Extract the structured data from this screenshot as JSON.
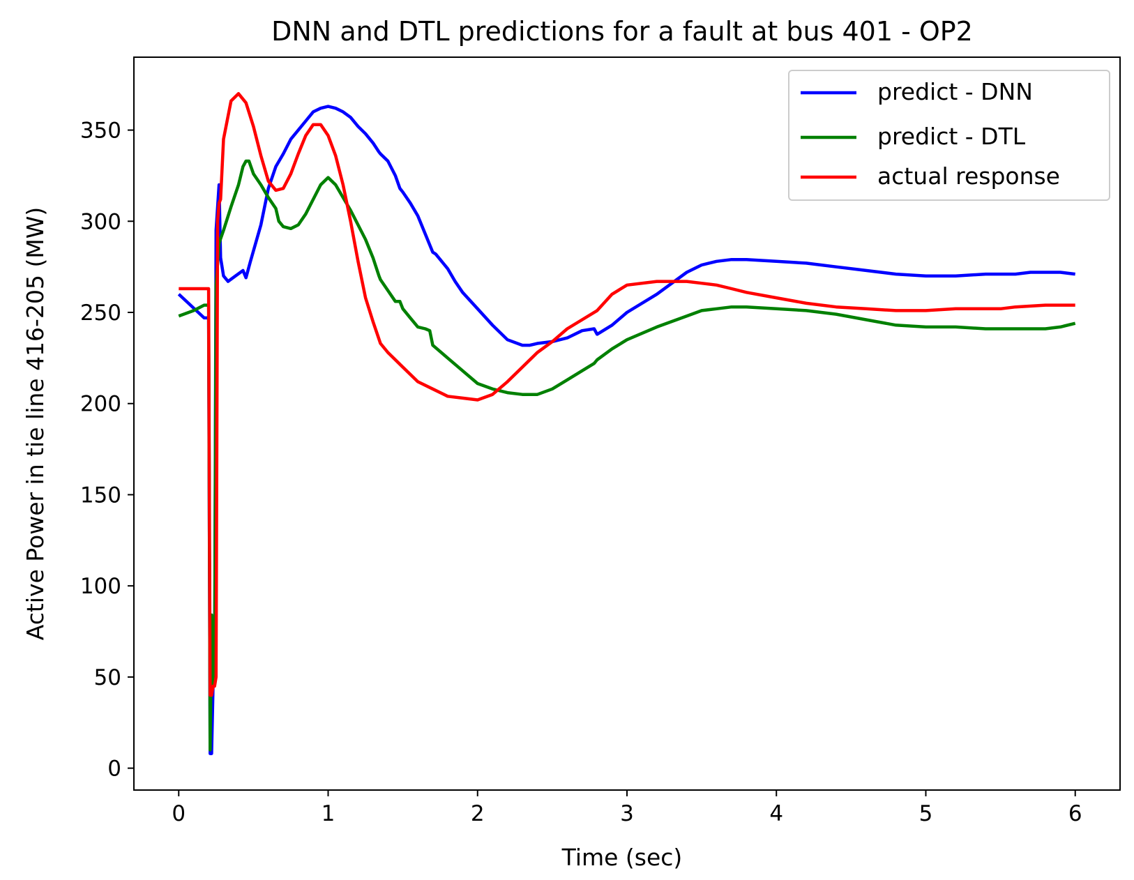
{
  "chart_data": {
    "type": "line",
    "title": "DNN and DTL predictions for a fault at bus 401 - OP2",
    "xlabel": "Time (sec)",
    "ylabel": "Active Power in tie line 416-205 (MW)",
    "xlim": [
      -0.3,
      6.3
    ],
    "ylim": [
      -12,
      390
    ],
    "xticks": [
      "0",
      "1",
      "2",
      "3",
      "4",
      "5",
      "6"
    ],
    "yticks": [
      "0",
      "50",
      "100",
      "150",
      "200",
      "250",
      "300",
      "350"
    ],
    "grid": false,
    "legend_position": "top-right",
    "series": [
      {
        "name": "predict - DNN",
        "color": "#0000ff",
        "x": [
          0,
          0.17,
          0.2,
          0.21,
          0.22,
          0.23,
          0.24,
          0.25,
          0.27,
          0.28,
          0.3,
          0.33,
          0.38,
          0.43,
          0.45,
          0.48,
          0.55,
          0.6,
          0.65,
          0.7,
          0.75,
          0.8,
          0.85,
          0.9,
          0.95,
          1.0,
          1.05,
          1.1,
          1.15,
          1.2,
          1.25,
          1.3,
          1.34,
          1.35,
          1.4,
          1.45,
          1.48,
          1.5,
          1.55,
          1.6,
          1.65,
          1.7,
          1.72,
          1.8,
          1.85,
          1.9,
          2.0,
          2.1,
          2.2,
          2.3,
          2.35,
          2.4,
          2.5,
          2.6,
          2.7,
          2.78,
          2.8,
          2.9,
          3.0,
          3.2,
          3.4,
          3.5,
          3.6,
          3.7,
          3.8,
          4.0,
          4.2,
          4.4,
          4.6,
          4.8,
          5.0,
          5.2,
          5.4,
          5.5,
          5.6,
          5.7,
          5.8,
          5.9,
          6.0
        ],
        "y": [
          260,
          247,
          247,
          8,
          8,
          45,
          47,
          295,
          320,
          280,
          270,
          267,
          270,
          273,
          269,
          278,
          298,
          318,
          330,
          337,
          345,
          350,
          355,
          360,
          362,
          363,
          362,
          360,
          357,
          352,
          348,
          343,
          338,
          337,
          333,
          325,
          318,
          316,
          310,
          303,
          293,
          283,
          282,
          274,
          267,
          261,
          252,
          243,
          235,
          232,
          232,
          233,
          234,
          236,
          240,
          241,
          238,
          243,
          250,
          260,
          272,
          276,
          278,
          279,
          279,
          278,
          277,
          275,
          273,
          271,
          270,
          270,
          271,
          271,
          271,
          272,
          272,
          272,
          271
        ]
      },
      {
        "name": "predict - DTL",
        "color": "#008000",
        "x": [
          0,
          0.1,
          0.17,
          0.2,
          0.21,
          0.22,
          0.23,
          0.24,
          0.25,
          0.27,
          0.3,
          0.35,
          0.4,
          0.43,
          0.45,
          0.47,
          0.5,
          0.55,
          0.6,
          0.65,
          0.67,
          0.7,
          0.75,
          0.8,
          0.85,
          0.9,
          0.95,
          1.0,
          1.05,
          1.1,
          1.15,
          1.2,
          1.25,
          1.3,
          1.34,
          1.35,
          1.4,
          1.45,
          1.48,
          1.5,
          1.55,
          1.6,
          1.65,
          1.68,
          1.7,
          1.8,
          1.9,
          2.0,
          2.1,
          2.2,
          2.3,
          2.4,
          2.5,
          2.6,
          2.7,
          2.78,
          2.8,
          2.9,
          3.0,
          3.2,
          3.4,
          3.5,
          3.6,
          3.7,
          3.8,
          4.0,
          4.2,
          4.4,
          4.6,
          4.8,
          5.0,
          5.2,
          5.4,
          5.6,
          5.7,
          5.8,
          5.9,
          6.0
        ],
        "y": [
          248,
          251,
          254,
          254,
          10,
          84,
          45,
          47,
          265,
          288,
          295,
          308,
          320,
          330,
          333,
          333,
          326,
          320,
          313,
          307,
          300,
          297,
          296,
          298,
          304,
          312,
          320,
          324,
          320,
          313,
          306,
          298,
          290,
          280,
          270,
          268,
          262,
          256,
          256,
          252,
          247,
          242,
          241,
          240,
          232,
          225,
          218,
          211,
          208,
          206,
          205,
          205,
          208,
          213,
          218,
          222,
          224,
          230,
          235,
          242,
          248,
          251,
          252,
          253,
          253,
          252,
          251,
          249,
          246,
          243,
          242,
          242,
          241,
          241,
          241,
          241,
          242,
          244
        ]
      },
      {
        "name": "actual response",
        "color": "#ff0000",
        "x": [
          0,
          0.2,
          0.2,
          0.21,
          0.22,
          0.23,
          0.24,
          0.25,
          0.26,
          0.27,
          0.28,
          0.3,
          0.35,
          0.4,
          0.45,
          0.5,
          0.55,
          0.6,
          0.65,
          0.7,
          0.75,
          0.8,
          0.85,
          0.9,
          0.95,
          1.0,
          1.05,
          1.1,
          1.15,
          1.2,
          1.25,
          1.3,
          1.35,
          1.4,
          1.5,
          1.6,
          1.7,
          1.8,
          1.9,
          2.0,
          2.1,
          2.2,
          2.3,
          2.4,
          2.5,
          2.6,
          2.7,
          2.8,
          2.9,
          3.0,
          3.2,
          3.4,
          3.5,
          3.6,
          3.7,
          3.8,
          4.0,
          4.2,
          4.4,
          4.6,
          4.8,
          5.0,
          5.2,
          5.4,
          5.5,
          5.6,
          5.8,
          6.0
        ],
        "y": [
          263,
          263,
          263,
          40,
          40,
          45,
          45,
          50,
          300,
          310,
          312,
          345,
          366,
          370,
          365,
          352,
          336,
          322,
          317,
          318,
          326,
          337,
          347,
          353,
          353,
          347,
          336,
          320,
          300,
          278,
          258,
          245,
          233,
          228,
          220,
          212,
          208,
          204,
          203,
          202,
          205,
          212,
          220,
          228,
          234,
          241,
          246,
          251,
          260,
          265,
          267,
          267,
          266,
          265,
          263,
          261,
          258,
          255,
          253,
          252,
          251,
          251,
          252,
          252,
          252,
          253,
          254,
          254
        ]
      }
    ]
  }
}
